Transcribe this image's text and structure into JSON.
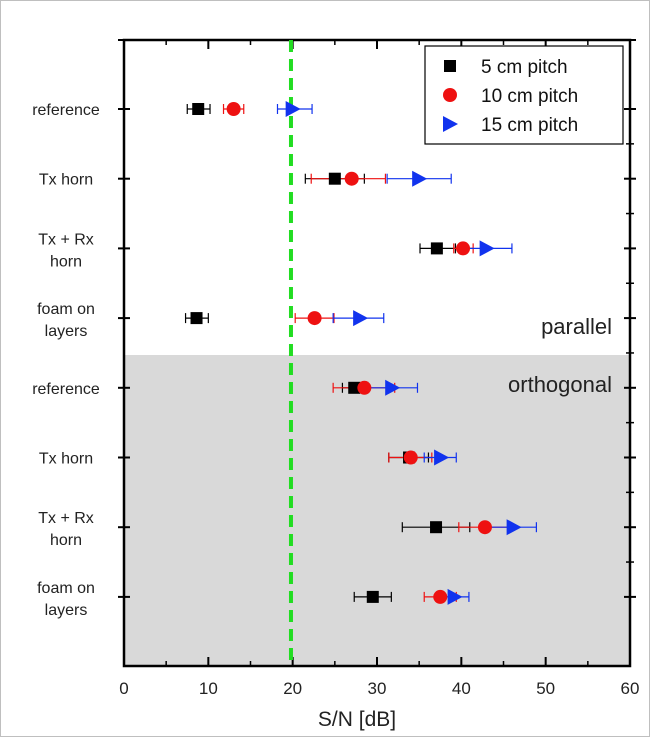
{
  "chart_data": {
    "type": "scatter",
    "orientation": "horizontal",
    "xlabel": "S/N [dB]",
    "xlim": [
      0,
      60
    ],
    "xticks": [
      0,
      10,
      20,
      30,
      40,
      50,
      60
    ],
    "reference_line": {
      "x": 19.8,
      "style": "dashed",
      "color": "#22dd22"
    },
    "categories": [
      {
        "label": [
          "reference"
        ]
      },
      {
        "label": [
          "Tx horn"
        ]
      },
      {
        "label": [
          "Tx + Rx",
          "horn"
        ]
      },
      {
        "label": [
          "foam on",
          "layers"
        ]
      },
      {
        "label": [
          "reference"
        ]
      },
      {
        "label": [
          "Tx horn"
        ]
      },
      {
        "label": [
          "Tx + Rx",
          "horn"
        ]
      },
      {
        "label": [
          "foam on",
          "layers"
        ]
      }
    ],
    "regions": [
      {
        "name": "parallel",
        "categories": [
          0,
          1,
          2,
          3
        ],
        "color": "#ffffff"
      },
      {
        "name": "orthogonal",
        "categories": [
          4,
          5,
          6,
          7
        ],
        "color": "#d9d9d9"
      }
    ],
    "series": [
      {
        "name": "5 cm pitch",
        "marker": "square",
        "color": "#000000",
        "values": [
          8.8,
          25.0,
          37.1,
          8.6,
          27.3,
          33.8,
          37.0,
          29.5
        ],
        "err_low": [
          7.5,
          21.5,
          35.1,
          7.3,
          25.9,
          31.4,
          33.0,
          27.3
        ],
        "err_high": [
          10.2,
          28.5,
          39.3,
          10.0,
          28.8,
          36.1,
          41.0,
          31.7
        ]
      },
      {
        "name": "10 cm pitch",
        "marker": "circle",
        "color": "#ee1111",
        "values": [
          13.0,
          27.0,
          40.2,
          22.6,
          28.5,
          34.0,
          42.8,
          37.5
        ],
        "err_low": [
          11.8,
          22.2,
          39.1,
          20.3,
          24.8,
          31.4,
          39.7,
          35.6
        ],
        "err_high": [
          14.2,
          31.0,
          41.4,
          24.9,
          32.1,
          36.5,
          45.9,
          39.4
        ]
      },
      {
        "name": "15 cm pitch",
        "marker": "triangle-right",
        "color": "#1133ee",
        "values": [
          20.0,
          35.0,
          43.0,
          28.0,
          31.8,
          37.6,
          46.2,
          39.2
        ],
        "err_low": [
          18.2,
          31.2,
          39.8,
          24.8,
          28.9,
          35.6,
          42.5,
          37.6
        ],
        "err_high": [
          22.3,
          38.8,
          46.0,
          30.8,
          34.8,
          39.4,
          48.9,
          40.9
        ]
      }
    ],
    "legend": {
      "position": "top-right"
    }
  }
}
